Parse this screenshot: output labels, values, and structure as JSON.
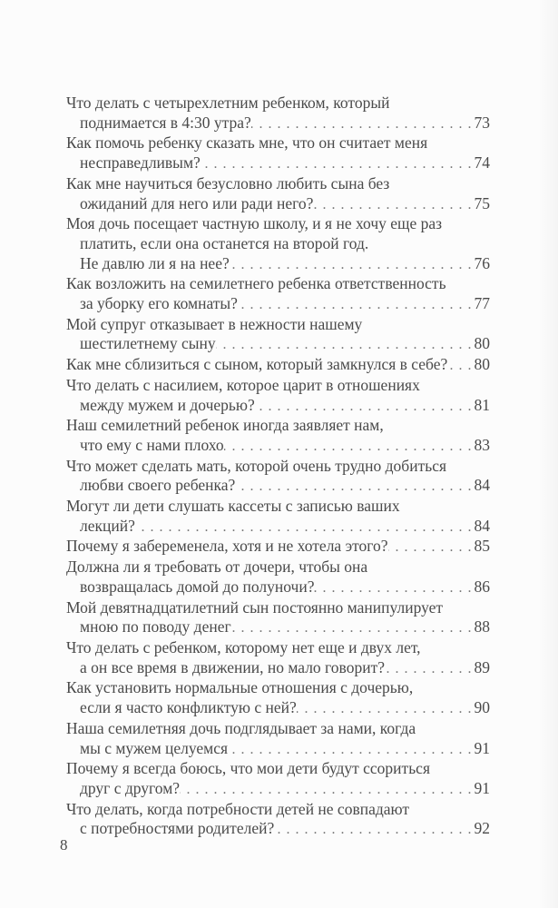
{
  "document": {
    "kind": "book-table-of-contents-page",
    "language": "ru",
    "footer_page_number": "8"
  },
  "colors": {
    "text": "#4a4a4a",
    "background": "#fcfcfc",
    "leader_dots": "#767676"
  },
  "toc_entries": [
    {
      "lines": [
        "Что делать с четырехлетним ребенком, который",
        "поднимается в 4:30 утра?"
      ],
      "page": "73"
    },
    {
      "lines": [
        "Как помочь ребенку сказать мне, что он считает меня",
        "несправедливым?"
      ],
      "page": "74"
    },
    {
      "lines": [
        "Как мне научиться безусловно любить сына без",
        "ожиданий для него или ради него?"
      ],
      "page": "75"
    },
    {
      "lines": [
        "Моя дочь посещает частную школу, и я не хочу еще раз",
        "платить, если она останется на второй год.",
        "Не давлю ли я на нее?"
      ],
      "page": "76"
    },
    {
      "lines": [
        "Как возложить на семилетнего ребенка ответственность",
        "за уборку его комнаты?"
      ],
      "page": "77"
    },
    {
      "lines": [
        "Мой супруг отказывает в нежности нашему",
        "шестилетнему сыну"
      ],
      "page": "80"
    },
    {
      "lines": [
        "Как мне сблизиться с сыном, который замкнулся в себе?"
      ],
      "page": "80"
    },
    {
      "lines": [
        "Что делать с насилием, которое царит в отношениях",
        "между мужем и дочерью?"
      ],
      "page": "81"
    },
    {
      "lines": [
        "Наш семилетний ребенок иногда заявляет нам,",
        "что ему с нами плохо"
      ],
      "page": "83"
    },
    {
      "lines": [
        "Что может сделать мать, которой очень трудно добиться",
        "любви своего ребенка?"
      ],
      "page": "84"
    },
    {
      "lines": [
        "Могут ли дети слушать кассеты с записью ваших",
        "лекций?"
      ],
      "page": "84"
    },
    {
      "lines": [
        "Почему я забеременела, хотя и не хотела этого?"
      ],
      "page": "85"
    },
    {
      "lines": [
        "Должна ли я требовать от дочери, чтобы она",
        "возвращалась домой до полуночи?"
      ],
      "page": "86"
    },
    {
      "lines": [
        "Мой девятнадцатилетний сын постоянно манипулирует",
        "мною по поводу денег"
      ],
      "page": "88"
    },
    {
      "lines": [
        "Что делать с ребенком, которому нет еще и двух лет,",
        "а он все время в движении, но мало говорит?"
      ],
      "page": "89"
    },
    {
      "lines": [
        "Как установить нормальные отношения с дочерью,",
        "если я часто конфликтую с ней?"
      ],
      "page": "90"
    },
    {
      "lines": [
        "Наша семилетняя дочь подглядывает за нами, когда",
        "мы с мужем целуемся"
      ],
      "page": "91"
    },
    {
      "lines": [
        "Почему я всегда боюсь, что мои дети будут ссориться",
        "друг с другом?"
      ],
      "page": "91"
    },
    {
      "lines": [
        "Что делать, когда потребности детей не совпадают",
        "с потребностями родителей?"
      ],
      "page": "92"
    }
  ]
}
